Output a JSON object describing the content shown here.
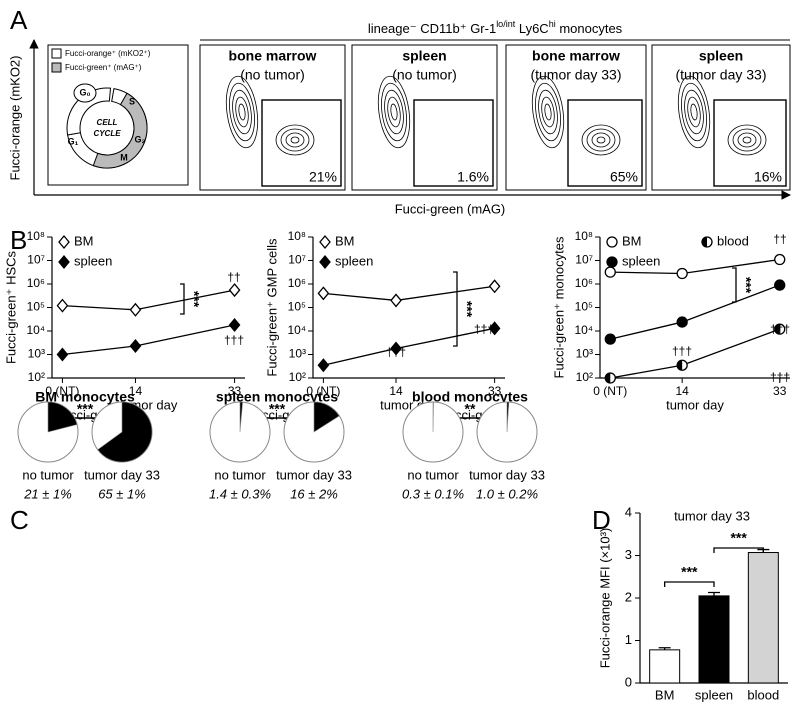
{
  "panel_labels": [
    "A",
    "B",
    "C",
    "D"
  ],
  "panel_a": {
    "header_parts": [
      {
        "text": "lineage⁻ CD11b⁺ Gr-1",
        "sup": false
      },
      {
        "text": "lo/int",
        "sup": true
      },
      {
        "text": " Ly6C",
        "sup": false
      },
      {
        "text": "hi",
        "sup": true
      },
      {
        "text": " monocytes",
        "sup": false
      }
    ],
    "y_label": "Fucci-orange (mKO2)",
    "x_label": "Fucci-green (mAG)",
    "legend": [
      "Fucci-orange⁺ (mKO2⁺)",
      "Fucci-green⁺ (mAG⁺)"
    ],
    "cell_cycle": {
      "title": [
        "CELL",
        "CYCLE"
      ],
      "phases": [
        "G₀",
        "G₁",
        "S",
        "G₂",
        "M"
      ]
    },
    "plots": [
      {
        "tissue": "bone marrow",
        "condition": "(no tumor)",
        "gate": "21%"
      },
      {
        "tissue": "spleen",
        "condition": "(no tumor)",
        "gate": "1.6%"
      },
      {
        "tissue": "bone marrow",
        "condition": "(tumor day 33)",
        "gate": "65%"
      },
      {
        "tissue": "spleen",
        "condition": "(tumor day 33)",
        "gate": "16%"
      }
    ]
  },
  "chart_data": [
    {
      "type": "line",
      "y_label": "Fucci-green⁺ HSCs",
      "x_label": "tumor day",
      "log_y": true,
      "x": [
        0,
        14,
        33
      ],
      "xlim": [
        -2,
        35
      ],
      "xticks": [
        {
          "value": 0,
          "label": "0 (NT)"
        },
        14,
        33
      ],
      "ylim": [
        100,
        100000000
      ],
      "yticks": [
        {
          "value": 100,
          "label": "10²"
        },
        {
          "value": 1000,
          "label": "10³"
        },
        {
          "value": 10000,
          "label": "10⁴"
        },
        {
          "value": 100000,
          "label": "10⁵"
        },
        {
          "value": 1000000,
          "label": "10⁶"
        },
        {
          "value": 10000000,
          "label": "10⁷"
        },
        {
          "value": 100000000,
          "label": "10⁸"
        }
      ],
      "series": [
        {
          "name": "BM",
          "color": "#000000",
          "marker": "diamond",
          "fill": "open",
          "values": [
            120000,
            80000,
            550000
          ]
        },
        {
          "name": "spleen",
          "color": "#000000",
          "marker": "diamond",
          "fill": "filled",
          "values": [
            1000,
            2300,
            18000
          ]
        }
      ],
      "annotations": [
        "††",
        "†††",
        "***"
      ]
    },
    {
      "type": "line",
      "y_label": "Fucci-green⁺ GMP cells",
      "x_label": "tumor day",
      "log_y": true,
      "x": [
        0,
        14,
        33
      ],
      "xlim": [
        -2,
        35
      ],
      "xticks": [
        {
          "value": 0,
          "label": "0 (NT)"
        },
        14,
        33
      ],
      "ylim": [
        100,
        100000000
      ],
      "yticks": [
        {
          "value": 100,
          "label": "10²"
        },
        {
          "value": 1000,
          "label": "10³"
        },
        {
          "value": 10000,
          "label": "10⁴"
        },
        {
          "value": 100000,
          "label": "10⁵"
        },
        {
          "value": 1000000,
          "label": "10⁶"
        },
        {
          "value": 10000000,
          "label": "10⁷"
        },
        {
          "value": 100000000,
          "label": "10⁸"
        }
      ],
      "series": [
        {
          "name": "BM",
          "color": "#000000",
          "marker": "diamond",
          "fill": "open",
          "values": [
            400000,
            200000,
            800000
          ]
        },
        {
          "name": "spleen",
          "color": "#000000",
          "marker": "diamond",
          "fill": "filled",
          "values": [
            350,
            1800,
            13000
          ]
        }
      ],
      "annotations": [
        "***",
        "†††",
        "†††"
      ]
    },
    {
      "type": "line",
      "y_label": "Fucci-green⁺ monocytes",
      "x_label": "tumor day",
      "log_y": true,
      "x": [
        0,
        14,
        33
      ],
      "xlim": [
        -2,
        35
      ],
      "xticks": [
        {
          "value": 0,
          "label": "0 (NT)"
        },
        14,
        33
      ],
      "ylim": [
        100,
        100000000
      ],
      "yticks": [
        {
          "value": 100,
          "label": "10²"
        },
        {
          "value": 1000,
          "label": "10³"
        },
        {
          "value": 10000,
          "label": "10⁴"
        },
        {
          "value": 100000,
          "label": "10⁵"
        },
        {
          "value": 1000000,
          "label": "10⁶"
        },
        {
          "value": 10000000,
          "label": "10⁷"
        },
        {
          "value": 100000000,
          "label": "10⁸"
        }
      ],
      "series": [
        {
          "name": "BM",
          "color": "#000000",
          "marker": "circle",
          "fill": "open",
          "values": [
            3200000,
            2800000,
            11000000
          ]
        },
        {
          "name": "spleen",
          "color": "#000000",
          "marker": "circle",
          "fill": "filled",
          "values": [
            4500,
            24000,
            900000
          ]
        },
        {
          "name": "blood",
          "color": "#000000",
          "marker": "circle",
          "fill": "half",
          "values": [
            100,
            350,
            12000
          ]
        }
      ],
      "annotations": [
        "††",
        "***",
        "†††",
        "†††",
        "†††"
      ]
    },
    {
      "type": "pie",
      "title": "BM monocytes",
      "subtitle": "(% Fucci-green⁺)",
      "color": "#000000",
      "categories": [
        "no tumor",
        "tumor day 33"
      ],
      "values": [
        21,
        65
      ],
      "value_labels": [
        "21 ± 1%",
        "65 ± 1%"
      ],
      "significance": "***"
    },
    {
      "type": "pie",
      "title": "spleen monocytes",
      "subtitle": "(% Fucci-green⁺)",
      "color": "#000000",
      "categories": [
        "no tumor",
        "tumor day 33"
      ],
      "values": [
        1.4,
        16
      ],
      "value_labels": [
        "1.4 ± 0.3%",
        "16 ± 2%"
      ],
      "significance": "***"
    },
    {
      "type": "pie",
      "title": "blood monocytes",
      "subtitle": "(% Fucci-green⁺)",
      "color": "#000000",
      "categories": [
        "no tumor",
        "tumor day 33"
      ],
      "values": [
        0.3,
        1.0
      ],
      "value_labels": [
        "0.3 ± 0.1%",
        "1.0 ± 0.2%"
      ],
      "significance": "**"
    },
    {
      "type": "bar",
      "title": "tumor day 33",
      "y_label": "Fucci-orange MFI (×10³)",
      "categories": [
        "BM",
        "spleen",
        "blood"
      ],
      "values": [
        0.78,
        2.05,
        3.07
      ],
      "errors": [
        0.05,
        0.08,
        0.07
      ],
      "colors": [
        "#ffffff",
        "#000000",
        "#d3d3d3"
      ],
      "ylim": [
        0,
        4
      ],
      "yticks": [
        0,
        1,
        2,
        3,
        4
      ],
      "annotations": [
        "***",
        "***"
      ]
    }
  ]
}
